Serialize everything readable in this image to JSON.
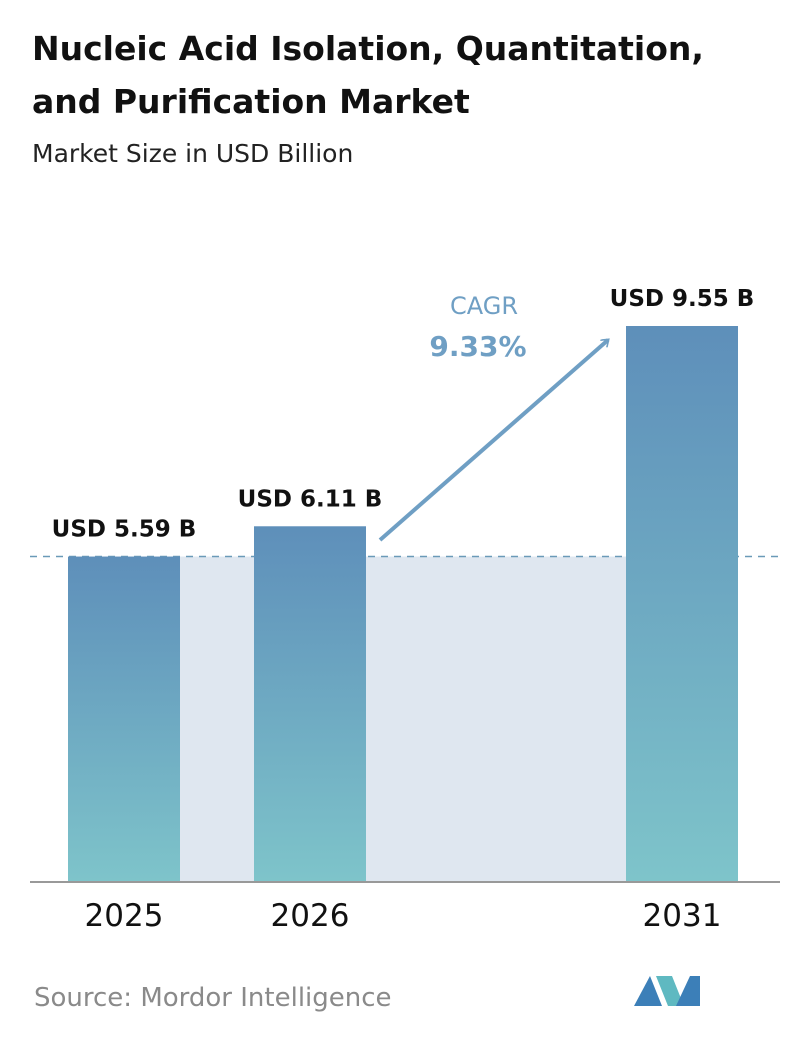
{
  "chart_data": {
    "type": "bar",
    "title": [
      "Nucleic Acid Isolation, Quantitation,",
      "and Purification Market"
    ],
    "subtitle": "Market Size in USD Billion",
    "categories": [
      "2025",
      "2026",
      "2031"
    ],
    "values": [
      5.59,
      6.11,
      9.55
    ],
    "value_labels": [
      "USD 5.59 B",
      "USD 6.11 B",
      "USD 9.55 B"
    ],
    "annotation": {
      "label": "CAGR",
      "text": "9.33%"
    },
    "source": "Source:  Mordor Intelligence"
  }
}
